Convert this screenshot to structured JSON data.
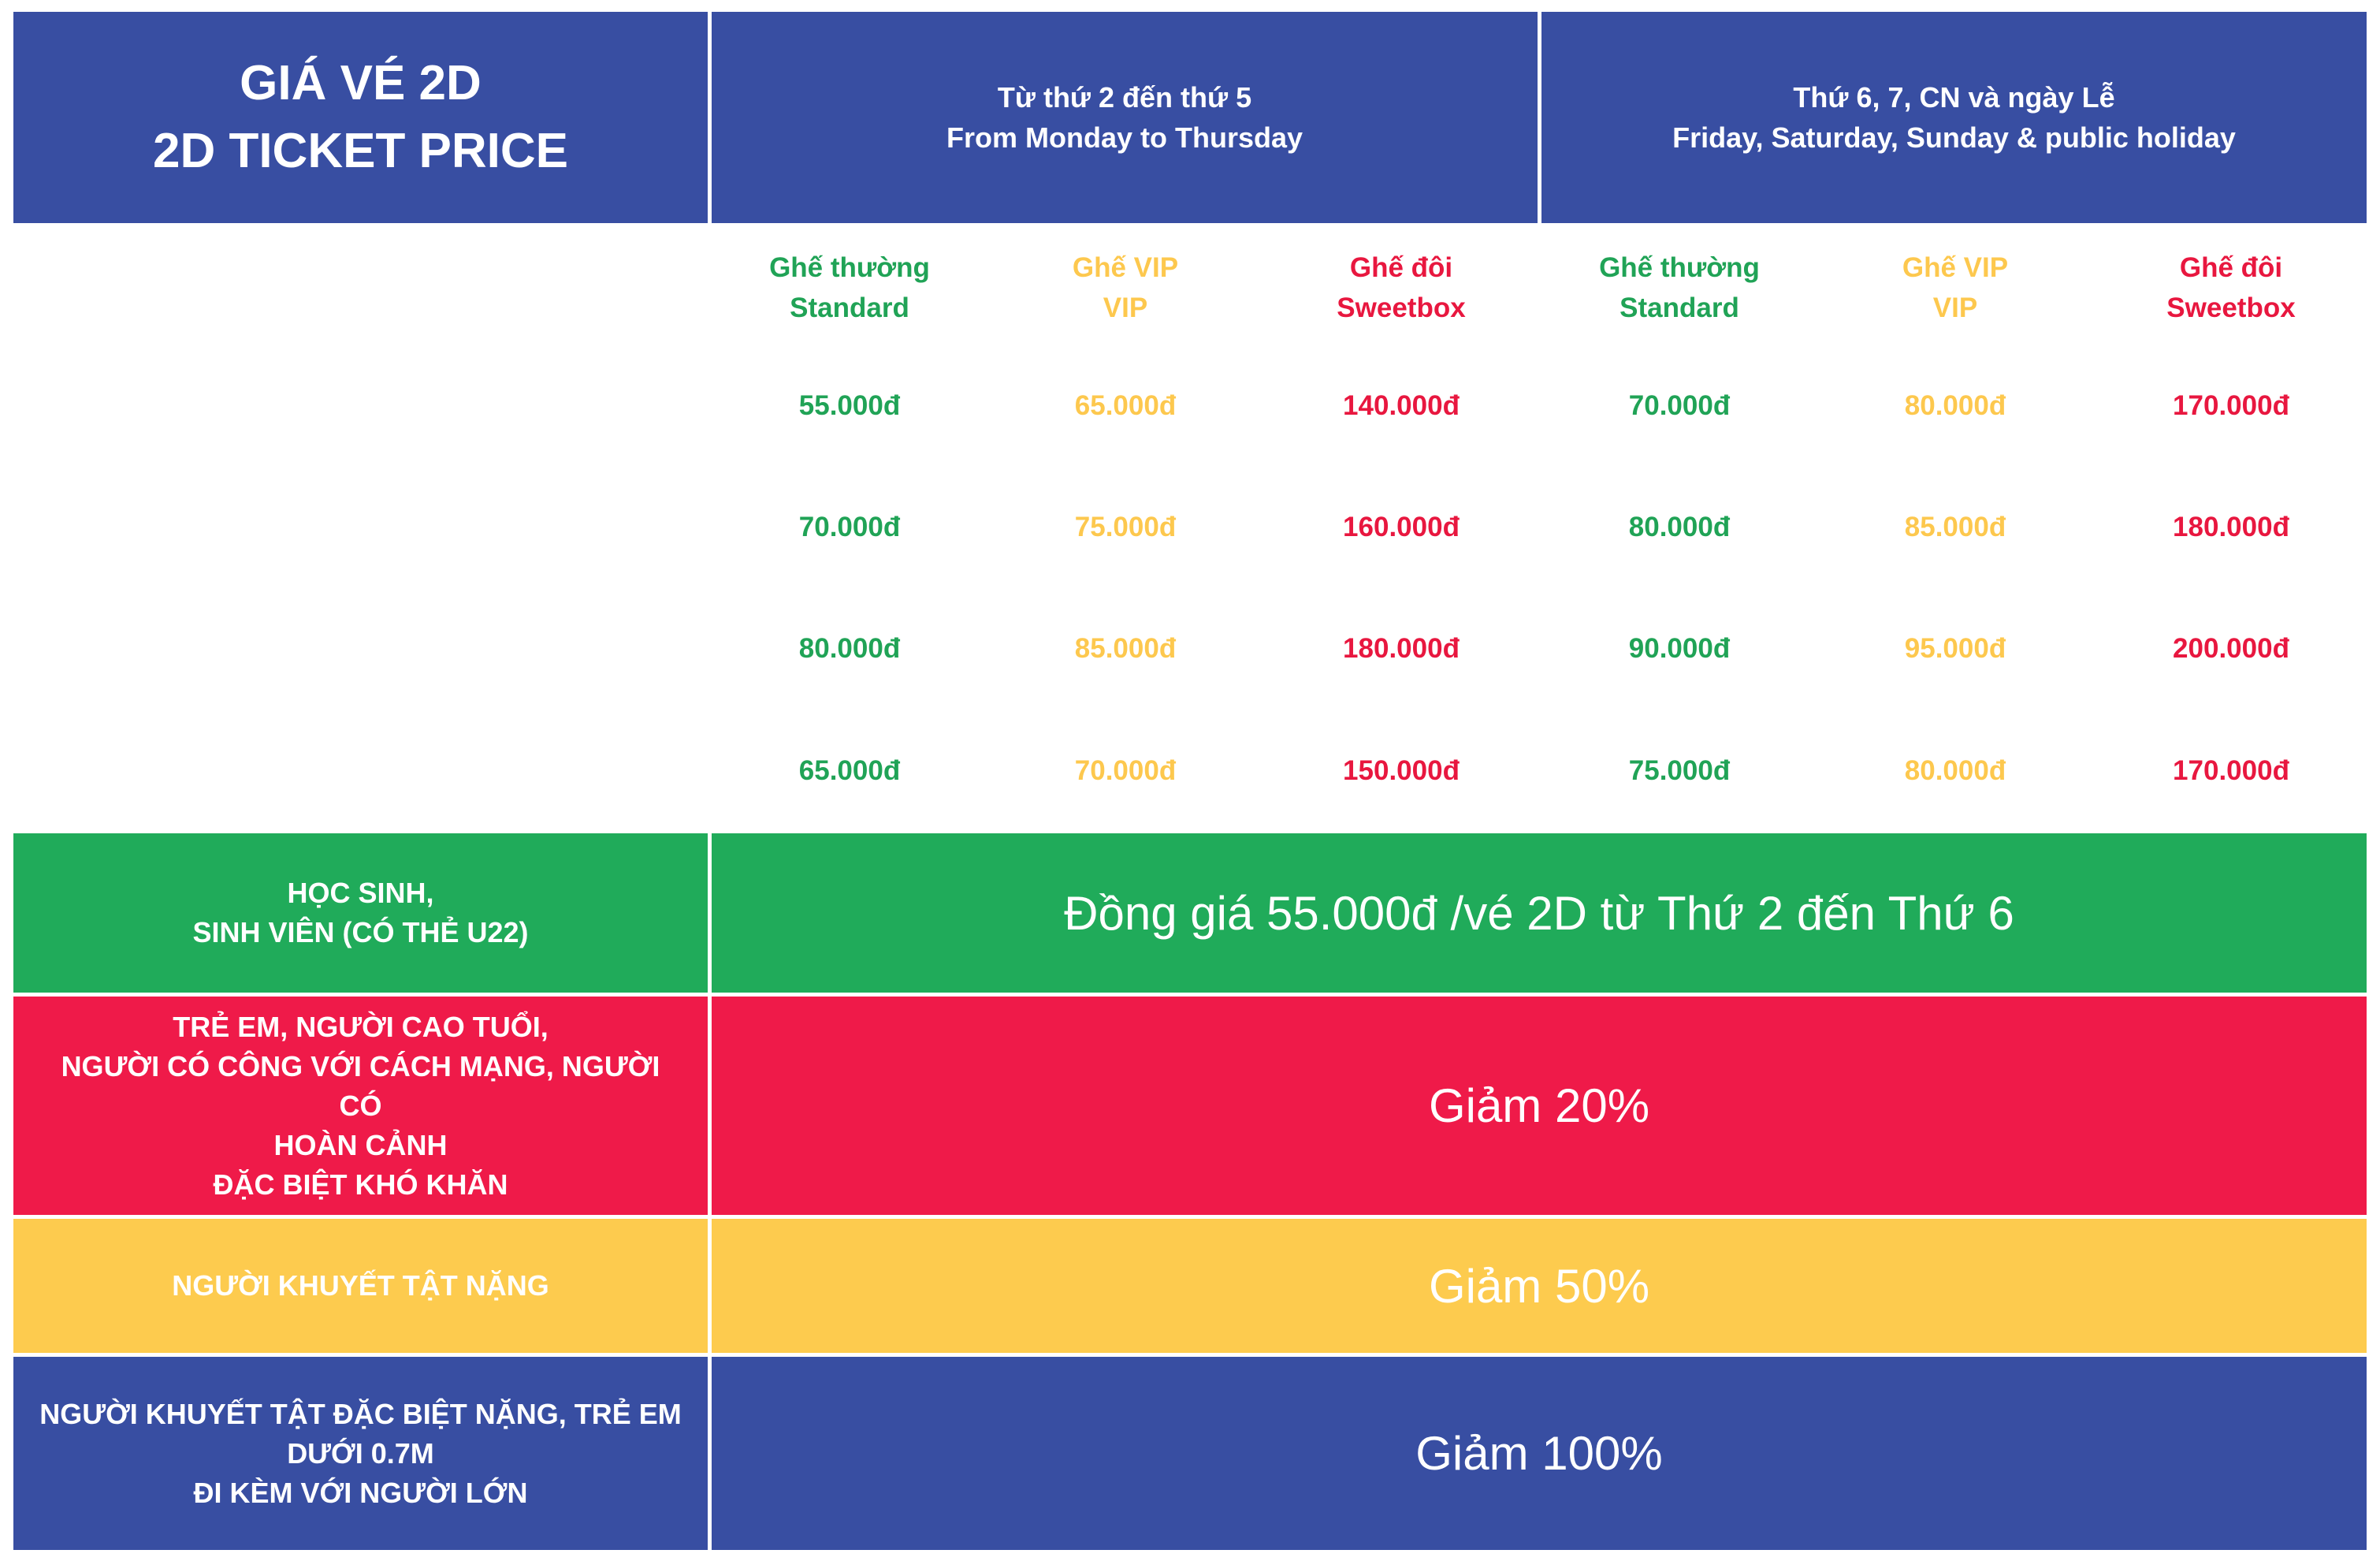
{
  "header": {
    "title_vi": "GIÁ VÉ 2D",
    "title_en": "2D TICKET PRICE",
    "weekday": {
      "vi": "Từ thứ 2 đến thứ 5",
      "en": "From Monday to Thursday"
    },
    "weekend": {
      "vi": "Thứ 6, 7, CN và ngày Lễ",
      "en": "Friday, Saturday, Sunday & public holiday"
    }
  },
  "seat_types": [
    {
      "vi": "Ghế thường",
      "en": "Standard",
      "color": "#20a356"
    },
    {
      "vi": "Ghế VIP",
      "en": "VIP",
      "color": "#fdc84e"
    },
    {
      "vi": "Ghế đôi",
      "en": "Sweetbox",
      "color": "#e8173f"
    }
  ],
  "price_rows": [
    {
      "weekday": [
        "55.000đ",
        "65.000đ",
        "140.000đ"
      ],
      "weekend": [
        "70.000đ",
        "80.000đ",
        "170.000đ"
      ]
    },
    {
      "weekday": [
        "70.000đ",
        "75.000đ",
        "160.000đ"
      ],
      "weekend": [
        "80.000đ",
        "85.000đ",
        "180.000đ"
      ]
    },
    {
      "weekday": [
        "80.000đ",
        "85.000đ",
        "180.000đ"
      ],
      "weekend": [
        "90.000đ",
        "95.000đ",
        "200.000đ"
      ]
    },
    {
      "weekday": [
        "65.000đ",
        "70.000đ",
        "150.000đ"
      ],
      "weekend": [
        "75.000đ",
        "80.000đ",
        "170.000đ"
      ]
    }
  ],
  "special_rows": [
    {
      "lines": [
        "HỌC SINH,",
        "SINH VIÊN (CÓ THẺ U22)"
      ],
      "offer": "Đồng giá 55.000đ /vé 2D từ Thứ 2 đến Thứ 6",
      "color": "#20ab5a"
    },
    {
      "lines": [
        "TRẺ EM, NGƯỜI CAO TUỔI,",
        "NGƯỜI CÓ CÔNG VỚI CÁCH MẠNG, NGƯỜI CÓ",
        "HOÀN CẢNH",
        "ĐẶC BIỆT KHÓ KHĂN"
      ],
      "offer": "Giảm 20%",
      "color": "#ef1a49"
    },
    {
      "lines": [
        "NGƯỜI KHUYẾT TẬT NẶNG"
      ],
      "offer": "Giảm 50%",
      "color": "#fdcb4e"
    },
    {
      "lines": [
        "NGƯỜI KHUYẾT TẬT ĐẶC BIỆT NẶNG, TRẺ EM",
        "DƯỚI 0.7M",
        "ĐI KÈM VỚI NGƯỜI LỚN"
      ],
      "offer": "Giảm 100%",
      "color": "#384ea2"
    }
  ]
}
